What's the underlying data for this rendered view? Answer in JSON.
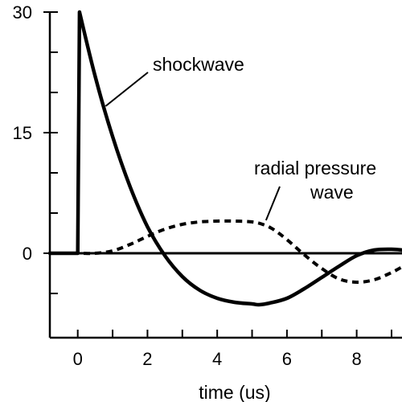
{
  "chart_data": {
    "type": "line",
    "xlabel": "time (us)",
    "ylabel": "",
    "xlim": [
      -0.8,
      9.3
    ],
    "ylim": [
      -10.5,
      30
    ],
    "x_ticks": [
      0,
      2,
      4,
      6,
      8
    ],
    "x_minor_ticks": [
      -1,
      1,
      3,
      5,
      7,
      9
    ],
    "y_ticks": [
      0,
      15,
      30
    ],
    "y_minor_ticks": [
      -5,
      5,
      10,
      20,
      25
    ],
    "grid": false,
    "annotations": [
      {
        "text": "shockwave",
        "series": "shockwave",
        "x": 0.8,
        "y": 18.3
      },
      {
        "text": "radial pressure wave",
        "lines": [
          "radial pressure",
          "wave"
        ],
        "series": "radial pressure wave",
        "x": 5.4,
        "y": 4.1
      }
    ],
    "series": [
      {
        "style": "solid",
        "x": [
          -0.8,
          -0.05,
          0,
          0.05,
          0.5,
          1.0,
          1.5,
          2.0,
          2.5,
          3.0,
          3.5,
          4.0,
          4.5,
          5.0,
          5.2,
          5.5,
          6.0,
          6.5,
          7.0,
          7.5,
          8.0,
          8.5,
          9.0,
          9.3
        ],
        "y": [
          0,
          0,
          0,
          30,
          22,
          14.5,
          8.3,
          3.3,
          -0.3,
          -2.9,
          -4.6,
          -5.6,
          -6.1,
          -6.3,
          -6.4,
          -6.2,
          -5.6,
          -4.4,
          -3.0,
          -1.6,
          -0.3,
          0.4,
          0.5,
          0.4
        ]
      },
      {
        "style": "dashed",
        "x": [
          -0.8,
          0,
          0.5,
          1.0,
          1.5,
          2.0,
          2.5,
          3.0,
          3.5,
          4.0,
          4.5,
          5.0,
          5.3,
          5.6,
          6.0,
          6.5,
          7.0,
          7.5,
          8.0,
          8.5,
          9.0,
          9.3
        ],
        "y": [
          0,
          0,
          0,
          0.3,
          1.1,
          2.1,
          3.0,
          3.6,
          3.9,
          4.0,
          4.0,
          3.9,
          3.6,
          3.0,
          1.7,
          -0.2,
          -1.9,
          -3.2,
          -3.6,
          -3.3,
          -2.4,
          -1.7
        ]
      }
    ]
  }
}
